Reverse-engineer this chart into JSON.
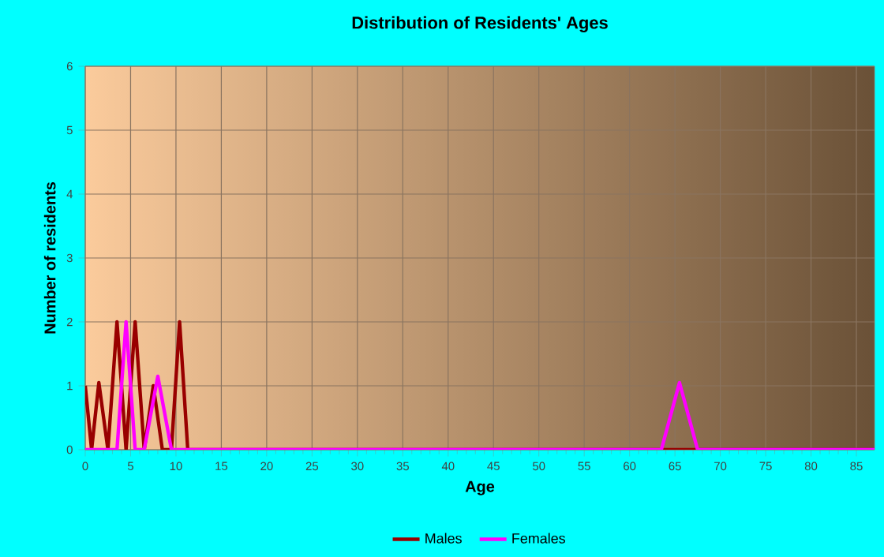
{
  "chart_data": {
    "type": "line",
    "title": "Distribution of Residents' Ages",
    "xlabel": "Age",
    "ylabel": "Number of residents",
    "xlim": [
      0,
      87
    ],
    "xticks": [
      0,
      5,
      10,
      15,
      20,
      25,
      30,
      35,
      40,
      45,
      50,
      55,
      60,
      65,
      70,
      75,
      80,
      85
    ],
    "ylim": [
      0,
      6
    ],
    "yticks": [
      0,
      1,
      2,
      3,
      4,
      5,
      6
    ],
    "grid": true,
    "legend": "bottom",
    "marker": "none",
    "line_style": "solid",
    "series": [
      {
        "name": "Males",
        "color": "#990000",
        "x": [
          0,
          0.7,
          1.5,
          2.5,
          3.5,
          4.5,
          5.5,
          6.5,
          7.5,
          8.5,
          9.5,
          10.4,
          11.3,
          87
        ],
        "values": [
          1,
          0,
          1.05,
          0,
          2,
          0,
          2,
          0,
          1,
          0,
          0,
          2,
          0,
          0
        ]
      },
      {
        "name": "Females",
        "color": "#ff00ff",
        "x": [
          0,
          3.5,
          4.5,
          5.5,
          6.5,
          8,
          9.5,
          63.5,
          65.5,
          67.5,
          87
        ],
        "values": [
          0,
          0,
          2,
          0,
          0,
          1.15,
          0,
          0,
          1.05,
          0,
          0
        ]
      }
    ]
  }
}
